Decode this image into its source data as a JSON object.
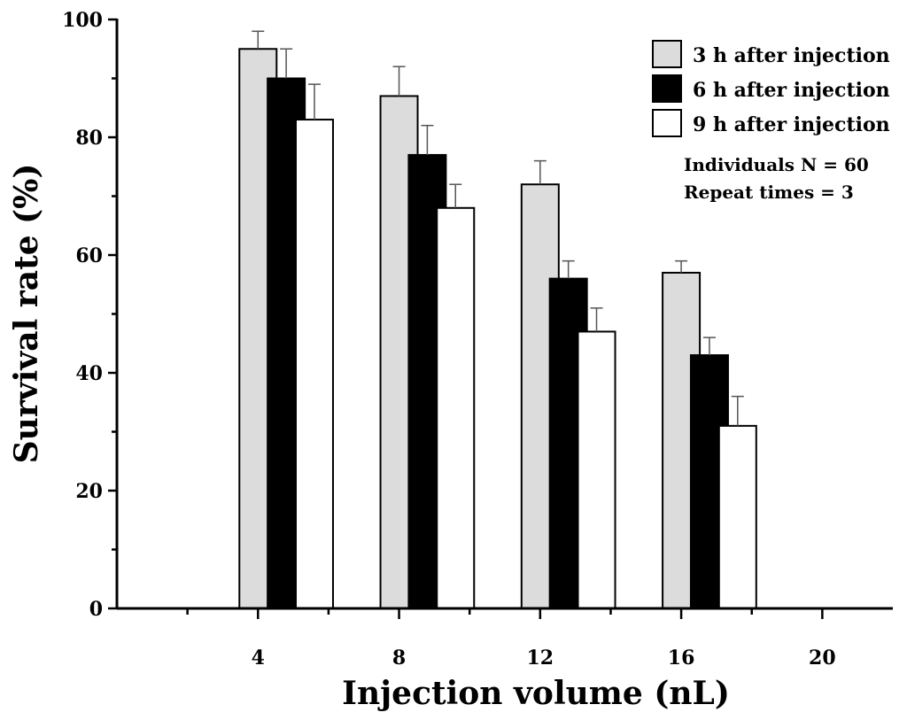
{
  "chart_data": {
    "type": "bar",
    "categories": [
      "4",
      "8",
      "12",
      "16",
      "20"
    ],
    "xlabel": "Injection volume (nL)",
    "ylabel": "Survival rate (%)",
    "ylim": [
      0,
      100
    ],
    "yticks": [
      0,
      20,
      40,
      60,
      80,
      100
    ],
    "xlim": [
      0,
      22
    ],
    "xticks": [
      4,
      8,
      12,
      16,
      20
    ],
    "series": [
      {
        "name": "3 h after injection",
        "color": "#dcdcdc",
        "values": [
          95,
          87,
          72,
          57
        ],
        "errors": [
          3,
          5,
          4,
          2
        ],
        "x": [
          4,
          8,
          12,
          16
        ]
      },
      {
        "name": "6 h after injection",
        "color": "#000000",
        "values": [
          90,
          77,
          56,
          43
        ],
        "errors": [
          5,
          5,
          3,
          3
        ],
        "x": [
          4.8,
          8.8,
          12.8,
          16.8
        ]
      },
      {
        "name": "9 h after injection",
        "color": "#ffffff",
        "values": [
          83,
          68,
          47,
          31
        ],
        "errors": [
          6,
          4,
          4,
          5
        ],
        "x": [
          5.6,
          9.6,
          13.6,
          17.6
        ]
      }
    ],
    "legend_position": "top-right",
    "annotations": [
      "Individuals N = 60",
      "Repeat times = 3"
    ]
  }
}
